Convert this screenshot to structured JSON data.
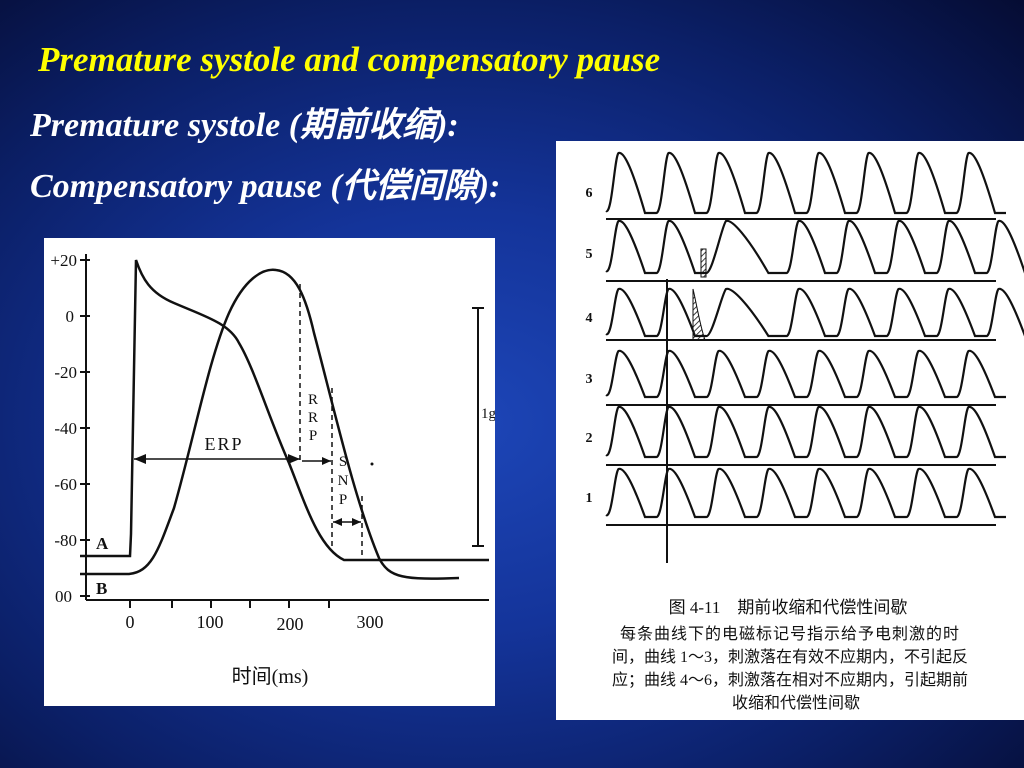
{
  "slide": {
    "title": "Premature systole and compensatory pause",
    "line1_label": "Premature systole (",
    "line1_cn": "期前收缩",
    "line1_end": "):",
    "line2_label": "Compensatory pause (",
    "line2_cn": "代偿间隙",
    "line2_end": "):"
  },
  "left_figure": {
    "y_ticks": [
      "+20",
      "0",
      "-20",
      "-40",
      "-60",
      "-80",
      "00"
    ],
    "x_ticks": [
      "0",
      "100",
      "200",
      "300"
    ],
    "x_label": "时间(ms)",
    "curve_a_label": "A",
    "curve_b_label": "B",
    "erp_label": "ERP",
    "rrp_letters": [
      "R",
      "R",
      "P"
    ],
    "snp_letters": [
      "S",
      "N",
      "P"
    ],
    "scale_label": "1g"
  },
  "right_figure": {
    "trace_numbers": [
      "6",
      "5",
      "4",
      "3",
      "2",
      "1"
    ],
    "caption_title": "图 4-11　期前收缩和代偿性间歇",
    "caption_lines": [
      "每条曲线下的电磁标记号指示给予电刺激的时",
      "间，曲线 1～3，刺激落在有效不应期内，不引起反",
      "应；曲线 4～6，刺激落在相对不应期内，引起期前",
      "收缩和代偿性间歇"
    ]
  }
}
